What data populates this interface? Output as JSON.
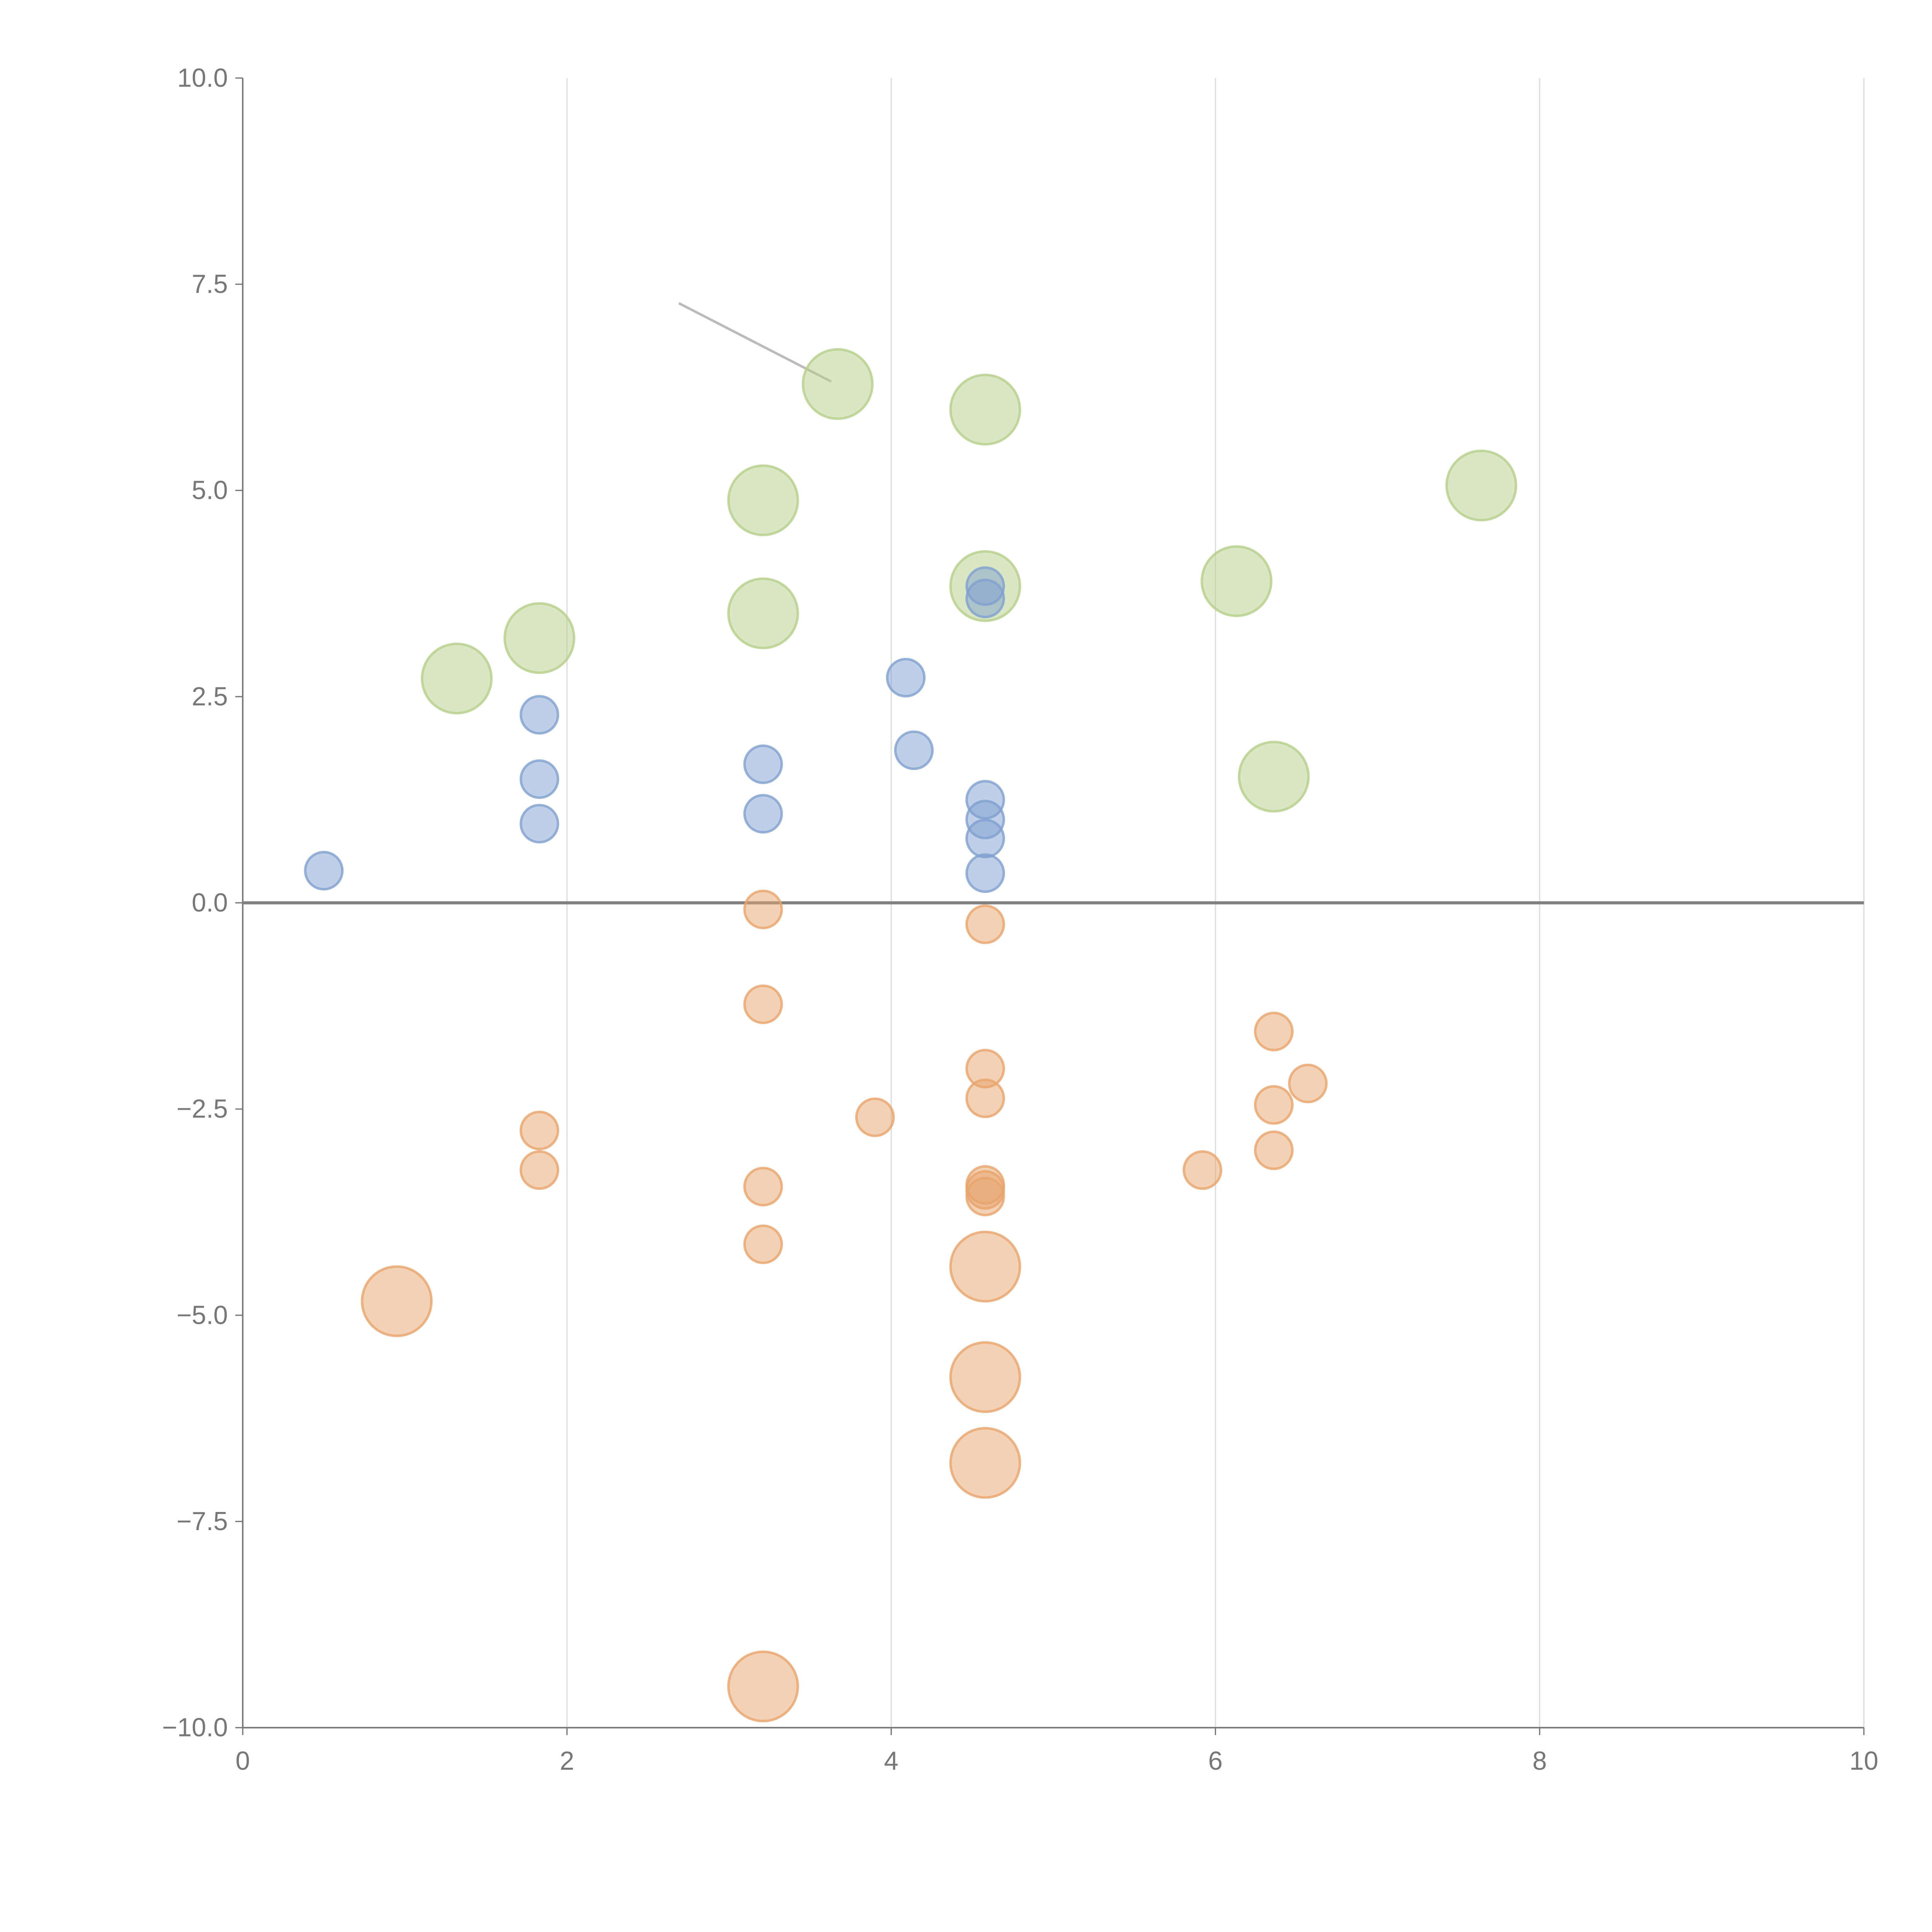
{
  "chart_data": {
    "type": "scatter",
    "title": "",
    "xlabel": "",
    "ylabel": "",
    "xlim": [
      0,
      10
    ],
    "ylim": [
      -10,
      10
    ],
    "x_ticks": [
      0,
      2,
      4,
      6,
      8,
      10
    ],
    "x_tick_labels": [
      "0",
      "2",
      "4",
      "6",
      "8",
      "10"
    ],
    "y_ticks": [
      10,
      7.5,
      5,
      2.5,
      0,
      -2.5,
      -5,
      -7.5,
      -10
    ],
    "y_tick_labels": [
      "10.0",
      "7.5",
      "5.0",
      "2.5",
      "0.0",
      "−2.5",
      "−5.0",
      "−7.5",
      "−10.0"
    ],
    "grid": "vertical",
    "colors": {
      "green": "#b5d08a",
      "blue": "#7fa0cf",
      "orange": "#e8a46c",
      "axis": "#777777",
      "zero_line": "#808080",
      "grid": "#dddddd"
    },
    "series": [
      {
        "name": "green",
        "size": "large",
        "points": [
          [
            3.67,
            6.29
          ],
          [
            4.58,
            5.98
          ],
          [
            3.21,
            4.88
          ],
          [
            7.64,
            5.06
          ],
          [
            4.58,
            3.84
          ],
          [
            6.13,
            3.9
          ],
          [
            3.21,
            3.51
          ],
          [
            1.83,
            3.21
          ],
          [
            1.32,
            2.72
          ],
          [
            6.36,
            1.53
          ]
        ]
      },
      {
        "name": "blue",
        "size": "small",
        "points": [
          [
            4.58,
            3.84
          ],
          [
            4.58,
            3.69
          ],
          [
            4.09,
            2.73
          ],
          [
            4.14,
            1.85
          ],
          [
            1.83,
            2.28
          ],
          [
            1.83,
            1.5
          ],
          [
            1.83,
            0.96
          ],
          [
            3.21,
            1.68
          ],
          [
            3.21,
            1.08
          ],
          [
            4.58,
            1.25
          ],
          [
            4.58,
            1.01
          ],
          [
            4.58,
            0.78
          ],
          [
            4.58,
            0.36
          ],
          [
            0.5,
            0.39
          ]
        ]
      },
      {
        "name": "orange",
        "size": "small",
        "points": [
          [
            3.21,
            -0.08
          ],
          [
            4.58,
            -0.26
          ],
          [
            3.21,
            -1.23
          ],
          [
            4.58,
            -2.01
          ],
          [
            4.58,
            -2.37
          ],
          [
            3.9,
            -2.6
          ],
          [
            1.83,
            -2.76
          ],
          [
            1.83,
            -3.24
          ],
          [
            3.21,
            -3.44
          ],
          [
            3.21,
            -4.14
          ],
          [
            4.58,
            -3.42
          ],
          [
            4.58,
            -3.48
          ],
          [
            4.58,
            -3.56
          ],
          [
            5.92,
            -3.24
          ],
          [
            6.36,
            -1.56
          ],
          [
            6.57,
            -2.19
          ],
          [
            6.36,
            -2.45
          ],
          [
            6.36,
            -3.0
          ]
        ]
      },
      {
        "name": "orange",
        "size": "large",
        "points": [
          [
            0.95,
            -4.83
          ],
          [
            4.58,
            -4.41
          ],
          [
            4.58,
            -5.75
          ],
          [
            4.58,
            -6.79
          ],
          [
            3.21,
            -9.5
          ]
        ]
      }
    ],
    "annotation_leader": {
      "from": [
        2.69,
        7.27
      ],
      "to": [
        3.63,
        6.32
      ]
    }
  }
}
